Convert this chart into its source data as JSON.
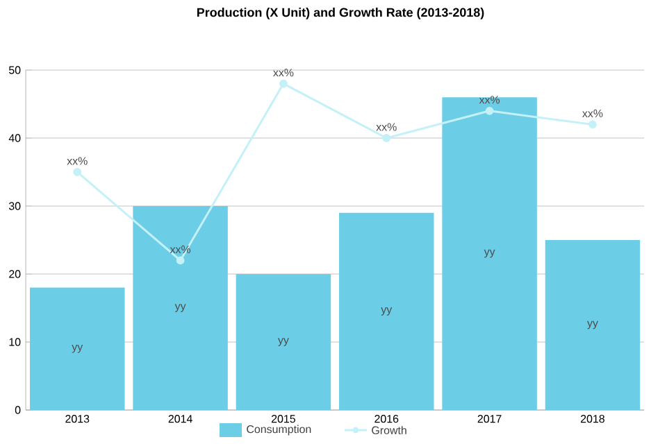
{
  "chart_data": {
    "type": "bar",
    "title": "Production (X Unit) and Growth Rate (2013-2018)",
    "categories": [
      "2013",
      "2014",
      "2015",
      "2016",
      "2017",
      "2018"
    ],
    "series": [
      {
        "name": "Consumption",
        "color": "#6ccde6",
        "values": [
          18,
          30,
          20,
          29,
          46,
          25
        ],
        "value_labels": [
          "yy",
          "yy",
          "yy",
          "yy",
          "yy",
          "yy"
        ]
      },
      {
        "name": "Growth",
        "type": "line",
        "color": "#c4f1f8",
        "marker": "circle",
        "values": [
          35,
          22,
          48,
          40,
          44,
          42
        ],
        "value_labels": [
          "xx%",
          "xx%",
          "xx%",
          "xx%",
          "xx%",
          "xx%"
        ]
      }
    ],
    "ylim": [
      0,
      50
    ],
    "yticks": [
      0,
      10,
      20,
      30,
      40,
      50
    ],
    "grid": "y",
    "legend": "bottom"
  }
}
